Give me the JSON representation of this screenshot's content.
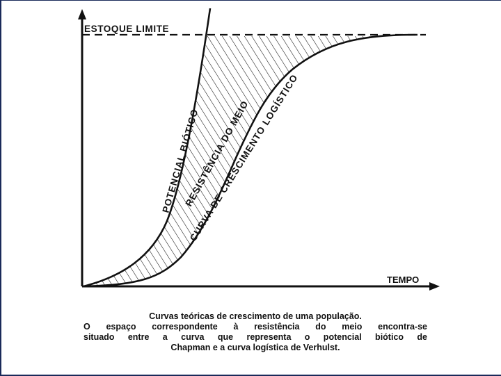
{
  "diagram": {
    "axis_labels": {
      "y_limit": "ESTOQUE LIMITE",
      "x": "TEMPO"
    },
    "curve_labels": {
      "biotic": "POTENCIAL BIÓTICO",
      "resistance": "RESISTÊNCIA DO MEIO",
      "logistic": "CURVA DE CRESCIMENTO LOGÍSTICO"
    },
    "colors": {
      "ink": "#111111",
      "frame": "#1a2a5a"
    }
  },
  "caption": {
    "line1": "Curvas teóricas de crescimento de uma população.",
    "line2": "O espaço correspondente à resistência do meio encontra-se",
    "line3": "situado entre a curva que representa o potencial biótico de",
    "line4": "Chapman e a curva logística de Verhulst."
  }
}
